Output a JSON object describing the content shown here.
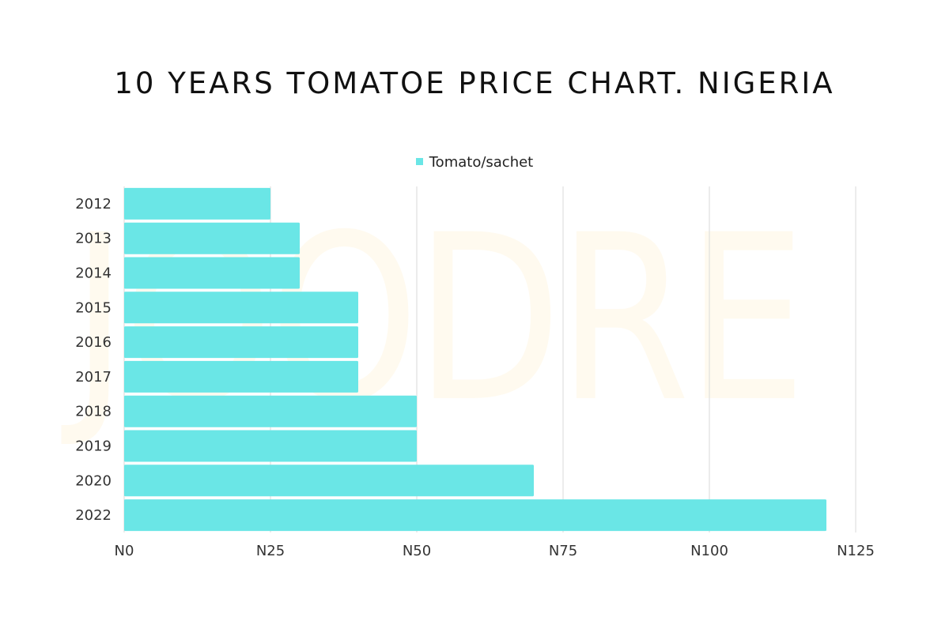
{
  "title": "10 YEARS TOMATOE PRICE CHART. NIGERIA",
  "watermark": "JOODRE",
  "colors": {
    "bar": "#6ae6e6",
    "grid": "#d9d9d9",
    "text": "#333333"
  },
  "chart_data": {
    "type": "bar",
    "orientation": "horizontal",
    "categories": [
      "2012",
      "2013",
      "2014",
      "2015",
      "2016",
      "2017",
      "2018",
      "2019",
      "2020",
      "2022"
    ],
    "series": [
      {
        "name": "Tomato/sachet",
        "values": [
          25,
          30,
          30,
          40,
          40,
          40,
          50,
          50,
          70,
          120
        ]
      }
    ],
    "xlim": [
      0,
      125
    ],
    "xticks": [
      0,
      25,
      50,
      75,
      100,
      125
    ],
    "xtick_labels": [
      "N0",
      "N25",
      "N50",
      "N75",
      "N100",
      "N125"
    ],
    "grid": true,
    "legend": "top-center"
  }
}
